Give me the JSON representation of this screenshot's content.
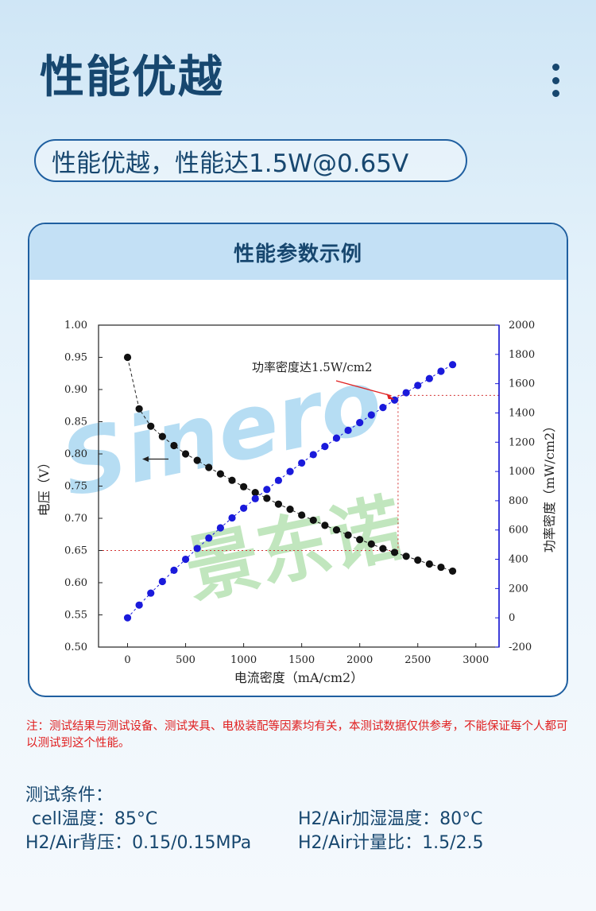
{
  "header": {
    "title": "性能优越",
    "subtitle": "性能优越，性能达1.5W@0.65V"
  },
  "card": {
    "title": "性能参数示例"
  },
  "watermark": {
    "latin": "Sinero",
    "chinese": "景东诺"
  },
  "chart_data": {
    "type": "scatter",
    "xlabel": "电流密度（mA/cm2）",
    "ylabel_left": "电压（V）",
    "ylabel_right": "功率密度（mW/cm2）",
    "xlim": [
      -250,
      3200
    ],
    "ylim_left": [
      0.5,
      1.0
    ],
    "ylim_right": [
      -200,
      2000
    ],
    "x_ticks": [
      "0",
      "500",
      "1000",
      "1500",
      "2000",
      "2500",
      "3000"
    ],
    "y_left_ticks": [
      "1.00",
      "0.95",
      "0.90",
      "0.85",
      "0.80",
      "0.75",
      "0.70",
      "0.65",
      "0.60",
      "0.55",
      "0.50"
    ],
    "y_right_ticks": [
      "2000",
      "1800",
      "1600",
      "1400",
      "1200",
      "1000",
      "800",
      "600",
      "400",
      "200",
      "0",
      "-200"
    ],
    "annotation": "功率密度达1.5W/cm2",
    "reference_lines": {
      "voltage": 0.65,
      "power": 1520,
      "current": 2330
    },
    "x": [
      0,
      100,
      200,
      300,
      400,
      500,
      600,
      700,
      800,
      900,
      1000,
      1100,
      1200,
      1300,
      1400,
      1500,
      1600,
      1700,
      1800,
      1900,
      2000,
      2100,
      2200,
      2300,
      2400,
      2500,
      2600,
      2700,
      2800
    ],
    "series": [
      {
        "name": "电压",
        "axis": "left",
        "color": "#111111",
        "values": [
          0.95,
          0.87,
          0.843,
          0.827,
          0.813,
          0.8,
          0.79,
          0.779,
          0.769,
          0.759,
          0.749,
          0.74,
          0.731,
          0.722,
          0.714,
          0.705,
          0.697,
          0.689,
          0.682,
          0.674,
          0.667,
          0.66,
          0.653,
          0.647,
          0.641,
          0.635,
          0.629,
          0.624,
          0.618
        ]
      },
      {
        "name": "功率密度",
        "axis": "right",
        "color": "#1a1adb",
        "values": [
          0,
          87,
          169,
          248,
          325,
          400,
          474,
          545,
          615,
          683,
          749,
          814,
          877,
          939,
          1000,
          1058,
          1115,
          1171,
          1228,
          1281,
          1334,
          1386,
          1437,
          1488,
          1538,
          1588,
          1635,
          1685,
          1730
        ]
      }
    ],
    "colors": {
      "axis_right": "#1a1adb",
      "reference": "#d23030",
      "annotation_arrow": "#e02020"
    }
  },
  "note": "注：测试结果与测试设备、测试夹具、电极装配等因素均有关，本测试数据仅供参考，不能保证每个人都可以测试到这个性能。",
  "conditions": {
    "title": "测试条件：",
    "items": [
      "cell温度：85°C",
      "H2/Air加湿温度：80°C",
      "H2/Air背压：0.15/0.15MPa",
      "H2/Air计量比：1.5/2.5"
    ]
  },
  "colors": {
    "brand": "#17476f",
    "border": "#1f5fa0",
    "header_bg": "#c3e0f5",
    "note": "#e02020"
  }
}
